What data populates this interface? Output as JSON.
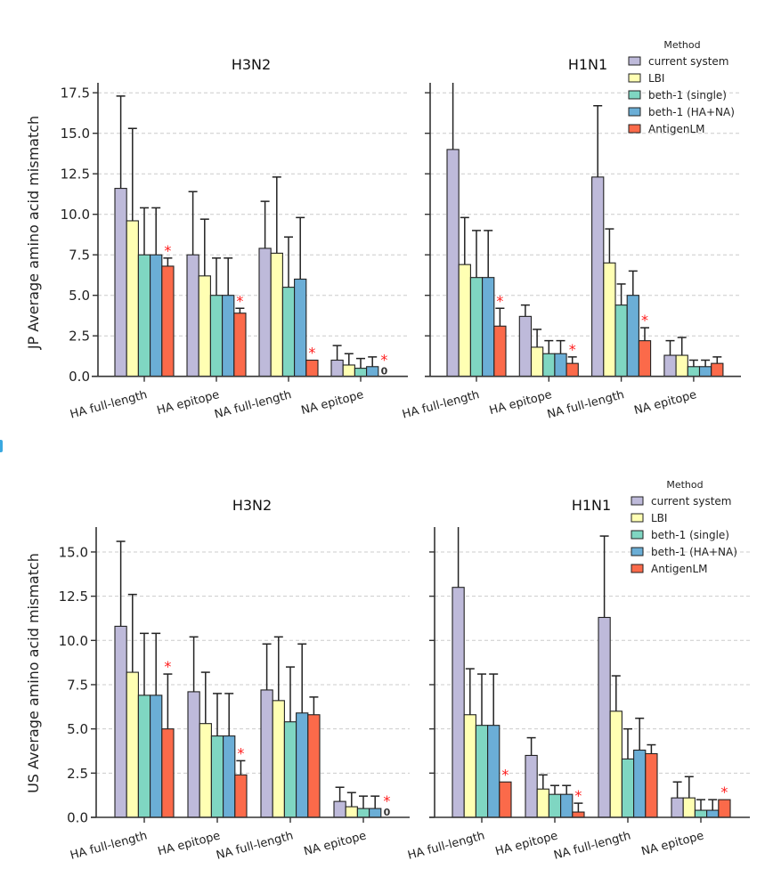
{
  "colors": {
    "current system": "#bebada",
    "LBI": "#ffffb3",
    "beth-1 (single)": "#7fd6c2",
    "beth-1 (HA+NA)": "#6baed6",
    "AntigenLM": "#fb6a4a",
    "significance": "#ff1a1a",
    "axis": "#333333",
    "grid": "#cccccc"
  },
  "legend": {
    "title": "Method",
    "items": [
      "current system",
      "LBI",
      "beth-1 (single)",
      "beth-1 (HA+NA)",
      "AntigenLM"
    ]
  },
  "chart_data": [
    {
      "type": "bar",
      "title": "H3N2",
      "ylabel": "JP Average amino acid mismatch",
      "xlabel": "",
      "ylim": [
        0,
        18.2
      ],
      "yticks": [
        "0.0",
        "2.5",
        "5.0",
        "7.5",
        "10.0",
        "12.5",
        "15.0",
        "17.5"
      ],
      "grid": "y-dashed",
      "legend": "none",
      "categories": [
        "HA full-length",
        "HA epitope",
        "NA full-length",
        "NA epitope"
      ],
      "series": [
        {
          "name": "current system",
          "values": [
            11.6,
            7.5,
            7.9,
            1.0
          ],
          "errors": [
            5.7,
            3.9,
            2.9,
            0.9
          ]
        },
        {
          "name": "LBI",
          "values": [
            9.6,
            6.2,
            7.6,
            0.7
          ],
          "errors": [
            5.7,
            3.5,
            4.7,
            0.7
          ]
        },
        {
          "name": "beth-1 (single)",
          "values": [
            7.5,
            5.0,
            5.5,
            0.5
          ],
          "errors": [
            2.9,
            2.3,
            3.1,
            0.6
          ]
        },
        {
          "name": "beth-1 (HA+NA)",
          "values": [
            7.5,
            5.0,
            6.0,
            0.6
          ],
          "errors": [
            2.9,
            2.3,
            3.8,
            0.6
          ]
        },
        {
          "name": "AntigenLM",
          "values": [
            6.8,
            3.9,
            1.0,
            0.0
          ],
          "errors": [
            0.5,
            0.3,
            0.0,
            0.0
          ]
        }
      ],
      "annotations": [
        {
          "category": "HA full-length",
          "series": "AntigenLM",
          "text": "*"
        },
        {
          "category": "HA epitope",
          "series": "AntigenLM",
          "text": "*"
        },
        {
          "category": "NA full-length",
          "series": "AntigenLM",
          "text": "*"
        },
        {
          "category": "NA epitope",
          "series": "AntigenLM",
          "text": "*"
        },
        {
          "category": "NA epitope",
          "series": "AntigenLM",
          "text": "0",
          "kind": "zero"
        }
      ]
    },
    {
      "type": "bar",
      "title": "H1N1",
      "ylabel": "",
      "xlabel": "",
      "ylim": [
        0,
        18.2
      ],
      "yticks": [
        "",
        "",
        "",
        "",
        "",
        "",
        "",
        ""
      ],
      "grid": "y-dashed",
      "legend": "top-right",
      "categories": [
        "HA full-length",
        "HA epitope",
        "NA full-length",
        "NA epitope"
      ],
      "series": [
        {
          "name": "current system",
          "values": [
            14.0,
            3.7,
            12.3,
            1.3
          ],
          "errors": [
            4.3,
            0.7,
            4.4,
            0.9
          ]
        },
        {
          "name": "LBI",
          "values": [
            6.9,
            1.8,
            7.0,
            1.3
          ],
          "errors": [
            2.9,
            1.1,
            2.1,
            1.1
          ]
        },
        {
          "name": "beth-1 (single)",
          "values": [
            6.1,
            1.4,
            4.4,
            0.6
          ],
          "errors": [
            2.9,
            0.8,
            1.3,
            0.4
          ]
        },
        {
          "name": "beth-1 (HA+NA)",
          "values": [
            6.1,
            1.4,
            5.0,
            0.6
          ],
          "errors": [
            2.9,
            0.8,
            1.5,
            0.4
          ]
        },
        {
          "name": "AntigenLM",
          "values": [
            3.1,
            0.8,
            2.2,
            0.8
          ],
          "errors": [
            1.1,
            0.4,
            0.8,
            0.4
          ]
        }
      ],
      "annotations": [
        {
          "category": "HA full-length",
          "series": "AntigenLM",
          "text": "*"
        },
        {
          "category": "HA epitope",
          "series": "AntigenLM",
          "text": "*"
        },
        {
          "category": "NA full-length",
          "series": "AntigenLM",
          "text": "*"
        }
      ]
    },
    {
      "type": "bar",
      "title": "H3N2",
      "ylabel": "US Average amino acid mismatch",
      "xlabel": "",
      "ylim": [
        0,
        16.4
      ],
      "yticks": [
        "0.0",
        "2.5",
        "5.0",
        "7.5",
        "10.0",
        "12.5",
        "15.0"
      ],
      "grid": "y-dashed",
      "legend": "none",
      "categories": [
        "HA full-length",
        "HA epitope",
        "NA full-length",
        "NA epitope"
      ],
      "series": [
        {
          "name": "current system",
          "values": [
            10.8,
            7.1,
            7.2,
            0.9
          ],
          "errors": [
            4.8,
            3.1,
            2.6,
            0.8
          ]
        },
        {
          "name": "LBI",
          "values": [
            8.2,
            5.3,
            6.6,
            0.6
          ],
          "errors": [
            4.4,
            2.9,
            3.6,
            0.8
          ]
        },
        {
          "name": "beth-1 (single)",
          "values": [
            6.9,
            4.6,
            5.4,
            0.5
          ],
          "errors": [
            3.5,
            2.4,
            3.1,
            0.7
          ]
        },
        {
          "name": "beth-1 (HA+NA)",
          "values": [
            6.9,
            4.6,
            5.9,
            0.5
          ],
          "errors": [
            3.5,
            2.4,
            3.9,
            0.7
          ]
        },
        {
          "name": "AntigenLM",
          "values": [
            5.0,
            2.4,
            5.8,
            0.0
          ],
          "errors": [
            3.1,
            0.8,
            1.0,
            0.0
          ]
        }
      ],
      "annotations": [
        {
          "category": "HA full-length",
          "series": "AntigenLM",
          "text": "*"
        },
        {
          "category": "HA epitope",
          "series": "AntigenLM",
          "text": "*"
        },
        {
          "category": "NA epitope",
          "series": "AntigenLM",
          "text": "*"
        },
        {
          "category": "NA epitope",
          "series": "AntigenLM",
          "text": "0",
          "kind": "zero"
        }
      ]
    },
    {
      "type": "bar",
      "title": "H1N1",
      "ylabel": "",
      "xlabel": "",
      "ylim": [
        0,
        16.4
      ],
      "yticks": [
        "",
        "",
        "",
        "",
        "",
        "",
        ""
      ],
      "grid": "y-dashed",
      "legend": "top-right",
      "categories": [
        "HA full-length",
        "HA epitope",
        "NA full-length",
        "NA epitope"
      ],
      "series": [
        {
          "name": "current system",
          "values": [
            13.0,
            3.5,
            11.3,
            1.1
          ],
          "errors": [
            4.0,
            1.0,
            4.6,
            0.9
          ]
        },
        {
          "name": "LBI",
          "values": [
            5.8,
            1.6,
            6.0,
            1.1
          ],
          "errors": [
            2.6,
            0.8,
            2.0,
            1.2
          ]
        },
        {
          "name": "beth-1 (single)",
          "values": [
            5.2,
            1.3,
            3.3,
            0.4
          ],
          "errors": [
            2.9,
            0.5,
            1.7,
            0.6
          ]
        },
        {
          "name": "beth-1 (HA+NA)",
          "values": [
            5.2,
            1.3,
            3.8,
            0.4
          ],
          "errors": [
            2.9,
            0.5,
            1.8,
            0.6
          ]
        },
        {
          "name": "AntigenLM",
          "values": [
            2.0,
            0.3,
            3.6,
            1.0
          ],
          "errors": [
            0.0,
            0.5,
            0.5,
            0.0
          ]
        }
      ],
      "annotations": [
        {
          "category": "HA full-length",
          "series": "AntigenLM",
          "text": "*"
        },
        {
          "category": "HA epitope",
          "series": "AntigenLM",
          "text": "*"
        },
        {
          "category": "NA epitope",
          "series": "AntigenLM",
          "text": "*"
        }
      ]
    }
  ]
}
